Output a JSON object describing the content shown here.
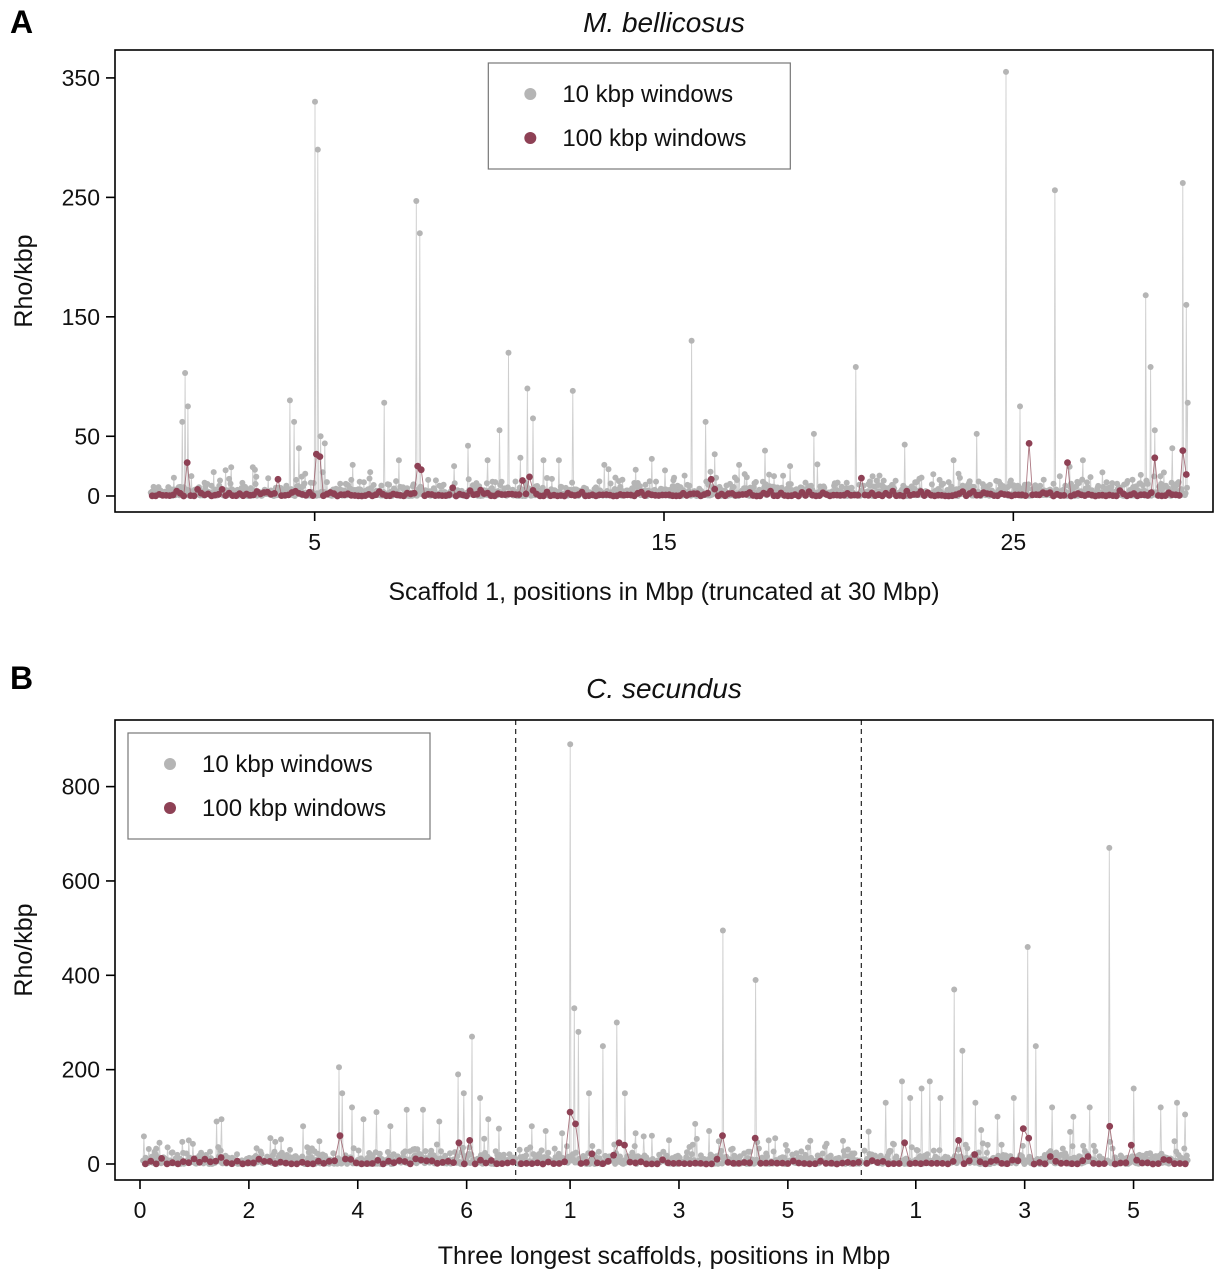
{
  "figure": {
    "background": "#ffffff",
    "colors": {
      "gray": "#b5b5b5",
      "gray_line": "#c6c6c6",
      "red": "#8e4155",
      "red_line": "#9c5f6b",
      "axis": "#000000"
    }
  },
  "chart_data": [
    {
      "type": "scatter",
      "panel_letter": "A",
      "title": "M. bellicosus",
      "ylabel": "Rho/kbp",
      "xlabel": "Scaffold 1, positions in Mbp (truncated at 30 Mbp)",
      "ylim": [
        0,
        365
      ],
      "yticks": [
        0,
        50,
        150,
        250,
        350
      ],
      "grid": false,
      "separators": false,
      "legend": {
        "position": "top-center",
        "items": [
          {
            "label": "10 kbp windows",
            "color_key": "gray"
          },
          {
            "label": "100 kbp windows",
            "color_key": "red"
          }
        ]
      },
      "segments": [
        {
          "length": 30,
          "xstart": 0.3,
          "xticks": [
            5,
            15,
            25
          ]
        }
      ],
      "series": [
        {
          "name": "10 kbp windows",
          "color_key": "gray",
          "window_mbp": 0.02,
          "noise_scale": 4,
          "noise_cap": 48,
          "seed": 11,
          "peaks": [
            [
              0,
              1.22,
              62
            ],
            [
              0,
              1.3,
              103
            ],
            [
              0,
              1.38,
              75
            ],
            [
              0,
              2.1,
              20
            ],
            [
              0,
              2.6,
              24
            ],
            [
              0,
              3.3,
              22
            ],
            [
              0,
              4.3,
              80
            ],
            [
              0,
              4.42,
              62
            ],
            [
              0,
              4.55,
              40
            ],
            [
              0,
              5.02,
              330
            ],
            [
              0,
              5.1,
              290
            ],
            [
              0,
              5.18,
              50
            ],
            [
              0,
              5.3,
              44
            ],
            [
              0,
              6.1,
              26
            ],
            [
              0,
              6.6,
              20
            ],
            [
              0,
              7.0,
              78
            ],
            [
              0,
              7.4,
              30
            ],
            [
              0,
              7.9,
              247
            ],
            [
              0,
              8.02,
              220
            ],
            [
              0,
              9.0,
              25
            ],
            [
              0,
              9.4,
              42
            ],
            [
              0,
              9.95,
              30
            ],
            [
              0,
              10.3,
              55
            ],
            [
              0,
              10.55,
              120
            ],
            [
              0,
              10.9,
              32
            ],
            [
              0,
              11.1,
              90
            ],
            [
              0,
              11.25,
              65
            ],
            [
              0,
              11.55,
              30
            ],
            [
              0,
              12.0,
              30
            ],
            [
              0,
              12.4,
              88
            ],
            [
              0,
              13.3,
              26
            ],
            [
              0,
              14.2,
              22
            ],
            [
              0,
              15.8,
              130
            ],
            [
              0,
              16.2,
              62
            ],
            [
              0,
              16.45,
              35
            ],
            [
              0,
              17.15,
              26
            ],
            [
              0,
              17.9,
              38
            ],
            [
              0,
              18.6,
              25
            ],
            [
              0,
              19.3,
              52
            ],
            [
              0,
              20.5,
              108
            ],
            [
              0,
              21.9,
              43
            ],
            [
              0,
              23.3,
              30
            ],
            [
              0,
              23.95,
              52
            ],
            [
              0,
              24.8,
              355
            ],
            [
              0,
              25.2,
              75
            ],
            [
              0,
              26.2,
              256
            ],
            [
              0,
              27.0,
              30
            ],
            [
              0,
              28.8,
              168
            ],
            [
              0,
              28.92,
              108
            ],
            [
              0,
              29.05,
              55
            ],
            [
              0,
              29.55,
              40
            ],
            [
              0,
              29.85,
              262
            ],
            [
              0,
              29.95,
              160
            ],
            [
              0,
              30.0,
              78
            ]
          ]
        },
        {
          "name": "100 kbp windows",
          "color_key": "red",
          "window_mbp": 0.1,
          "noise_scale": 1.3,
          "noise_cap": 8,
          "seed": 23,
          "peaks": [
            [
              0,
              1.3,
              28
            ],
            [
              0,
              3.9,
              14
            ],
            [
              0,
              5.05,
              35
            ],
            [
              0,
              5.15,
              33
            ],
            [
              0,
              7.9,
              25
            ],
            [
              0,
              8.0,
              22
            ],
            [
              0,
              10.9,
              13
            ],
            [
              0,
              11.2,
              16
            ],
            [
              0,
              16.3,
              14
            ],
            [
              0,
              20.6,
              15
            ],
            [
              0,
              25.45,
              44
            ],
            [
              0,
              26.5,
              28
            ],
            [
              0,
              29.0,
              32
            ],
            [
              0,
              29.8,
              38
            ],
            [
              0,
              29.95,
              18
            ]
          ]
        }
      ]
    },
    {
      "type": "scatter",
      "panel_letter": "B",
      "title": "C. secundus",
      "ylabel": "Rho/kbp",
      "xlabel": "Three longest scaffolds, positions in Mbp",
      "ylim": [
        0,
        920
      ],
      "yticks": [
        0,
        200,
        400,
        600,
        800
      ],
      "grid": false,
      "separators": true,
      "legend": {
        "position": "top-left",
        "items": [
          {
            "label": "10 kbp windows",
            "color_key": "gray"
          },
          {
            "label": "100 kbp windows",
            "color_key": "red"
          }
        ]
      },
      "segments": [
        {
          "length": 6.9,
          "xstart": 0.05,
          "xticks": [
            0,
            2,
            4,
            6
          ]
        },
        {
          "length": 6.35,
          "xstart": 0.05,
          "xticks": [
            1,
            3,
            5
          ]
        },
        {
          "length": 6.0,
          "xstart": 0.05,
          "xticks": [
            1,
            3,
            5
          ]
        }
      ],
      "series": [
        {
          "name": "10 kbp windows",
          "color_key": "gray",
          "window_mbp": 0.015,
          "noise_scale": 10,
          "noise_cap": 160,
          "seed": 37,
          "peaks": [
            [
              0,
              0.35,
              45
            ],
            [
              0,
              0.9,
              50
            ],
            [
              0,
              1.4,
              90
            ],
            [
              0,
              1.5,
              95
            ],
            [
              0,
              2.4,
              55
            ],
            [
              0,
              3.0,
              80
            ],
            [
              0,
              3.65,
              205
            ],
            [
              0,
              3.72,
              150
            ],
            [
              0,
              3.9,
              120
            ],
            [
              0,
              4.1,
              95
            ],
            [
              0,
              4.35,
              110
            ],
            [
              0,
              4.6,
              80
            ],
            [
              0,
              4.9,
              115
            ],
            [
              0,
              5.2,
              115
            ],
            [
              0,
              5.5,
              90
            ],
            [
              0,
              5.85,
              190
            ],
            [
              0,
              5.95,
              150
            ],
            [
              0,
              6.1,
              270
            ],
            [
              0,
              6.25,
              140
            ],
            [
              0,
              6.4,
              95
            ],
            [
              0,
              6.6,
              75
            ],
            [
              1,
              0.3,
              80
            ],
            [
              1,
              0.55,
              70
            ],
            [
              1,
              0.85,
              65
            ],
            [
              1,
              1.0,
              890
            ],
            [
              1,
              1.07,
              330
            ],
            [
              1,
              1.15,
              280
            ],
            [
              1,
              1.35,
              150
            ],
            [
              1,
              1.6,
              250
            ],
            [
              1,
              1.85,
              300
            ],
            [
              1,
              2.0,
              150
            ],
            [
              1,
              2.2,
              65
            ],
            [
              1,
              2.5,
              60
            ],
            [
              1,
              3.3,
              85
            ],
            [
              1,
              3.55,
              70
            ],
            [
              1,
              3.8,
              495
            ],
            [
              1,
              4.4,
              390
            ],
            [
              1,
              4.65,
              50
            ],
            [
              2,
              0.45,
              130
            ],
            [
              2,
              0.75,
              175
            ],
            [
              2,
              0.9,
              140
            ],
            [
              2,
              1.1,
              160
            ],
            [
              2,
              1.25,
              175
            ],
            [
              2,
              1.45,
              140
            ],
            [
              2,
              1.7,
              370
            ],
            [
              2,
              1.85,
              240
            ],
            [
              2,
              2.1,
              130
            ],
            [
              2,
              2.5,
              100
            ],
            [
              2,
              2.8,
              140
            ],
            [
              2,
              3.05,
              460
            ],
            [
              2,
              3.2,
              250
            ],
            [
              2,
              3.5,
              120
            ],
            [
              2,
              3.9,
              100
            ],
            [
              2,
              4.2,
              120
            ],
            [
              2,
              4.55,
              670
            ],
            [
              2,
              5.0,
              160
            ],
            [
              2,
              5.5,
              120
            ],
            [
              2,
              5.8,
              130
            ],
            [
              2,
              5.95,
              105
            ]
          ]
        },
        {
          "name": "100 kbp windows",
          "color_key": "red",
          "window_mbp": 0.1,
          "noise_scale": 3.5,
          "noise_cap": 22,
          "seed": 53,
          "peaks": [
            [
              0,
              3.65,
              60
            ],
            [
              0,
              5.9,
              45
            ],
            [
              0,
              6.1,
              50
            ],
            [
              1,
              1.0,
              110
            ],
            [
              1,
              1.05,
              85
            ],
            [
              1,
              1.9,
              45
            ],
            [
              1,
              2.0,
              40
            ],
            [
              1,
              3.8,
              60
            ],
            [
              1,
              4.4,
              55
            ],
            [
              2,
              0.8,
              45
            ],
            [
              2,
              1.8,
              50
            ],
            [
              2,
              3.0,
              75
            ],
            [
              2,
              3.1,
              55
            ],
            [
              2,
              4.55,
              80
            ],
            [
              2,
              5.0,
              40
            ]
          ]
        }
      ]
    }
  ]
}
